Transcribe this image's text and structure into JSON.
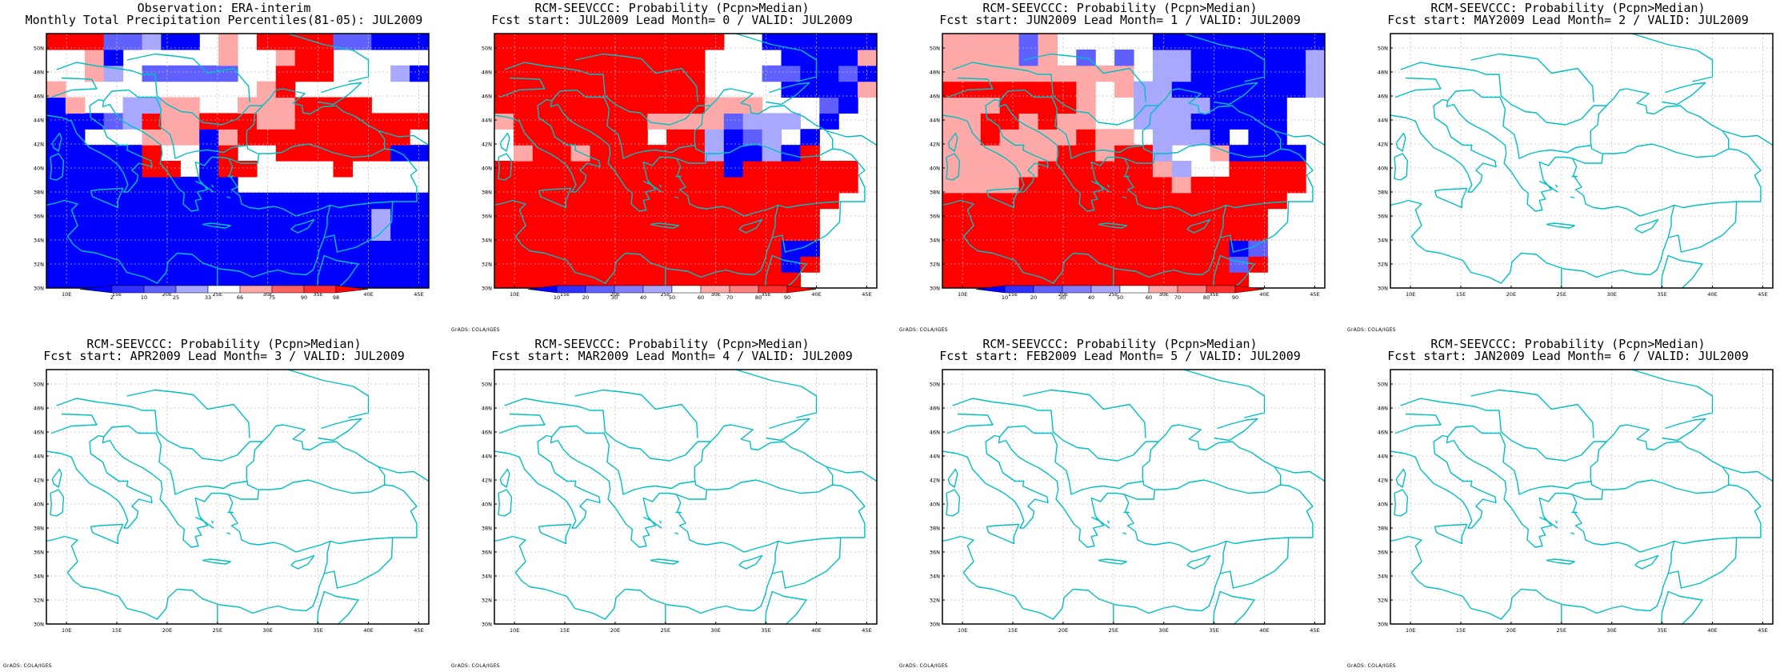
{
  "grid": {
    "lat_labels": [
      "30N",
      "32N",
      "34N",
      "36N",
      "38N",
      "40N",
      "42N",
      "44N",
      "46N",
      "48N",
      "50N"
    ],
    "lon_labels": [
      "10E",
      "15E",
      "20E",
      "25E",
      "30E",
      "35E",
      "40E",
      "45E"
    ],
    "lon_range": [
      8,
      46
    ],
    "lat_range": [
      30,
      51.2
    ]
  },
  "colors": {
    "red_deep": "#ff0000",
    "red_mid": "#ff6060",
    "red_light": "#ffa8a8",
    "white": "#ffffff",
    "blue_light": "#a8a8ff",
    "blue_mid": "#6060ff",
    "blue_deep": "#0000ff",
    "coast": "#00c0c0"
  },
  "panels": [
    {
      "title1": "Observation: ERA-interim",
      "title2": "Monthly Total Precipitation Percentiles(81-05): JUL2009",
      "colorbar": {
        "labels": [
          "2",
          "10",
          "25",
          "33",
          "66",
          "75",
          "90",
          "98"
        ],
        "colors": [
          "#0000ff",
          "#3030ff",
          "#6060ff",
          "#a8a8ff",
          "#ffffff",
          "#ffa8a8",
          "#ff6060",
          "#ff3030",
          "#ff0000"
        ]
      },
      "credit": "",
      "field": [
        "BBBBBBBBBBBBBBBBBBBB",
        "BBBBBBBBBBBBBBBBBBBB",
        "BBBBBBBBBBBBBBBBBBBB",
        "BBBBBBBBBBBBBBBBBbBB",
        "BBBBBBBBBBBBBBBBBbBB",
        "BBBBBBBBBBBBBBBBBBBB",
        "BBBBBBBBBBWWWWWWWWWW",
        "BBBBBRRWBRRWWWWRWWWW",
        "BBBBBRWWBRWWRRRRRRBB",
        "BBWWWrrrBrRRRRRRRRRW",
        "BBBMbRrrRRRrrRRRRRRR",
        "BrWWbbrrWWrrrRRRRWWW",
        "rWWWWWWWWWWrRWWWWWWW",
        "WWrbWMMMMMWWRRRWWWbB",
        "WWrBWWWWWrWWrRRWWWWW",
        "RRRMMbBBWrWRRRRMMBBB"
      ]
    },
    {
      "title1": "RCM-SEEVCCC: Probability (Pcpn>Median)",
      "title2": "Fcst start: JUL2009  Lead Month= 0 / VALID: JUL2009",
      "colorbar": {
        "labels": [
          "10",
          "20",
          "30",
          "40",
          "50",
          "60",
          "70",
          "80",
          "90"
        ],
        "colors": [
          "#0000ff",
          "#3030ff",
          "#6060ff",
          "#8080ff",
          "#a8a8ff",
          "#ffffff",
          "#ffa8a8",
          "#ff8080",
          "#ff3030",
          "#ff0000"
        ]
      },
      "credit": "GrADS: COLA/IGES",
      "field": [
        "RRRRRRRRRRRRRRRRWWWW",
        "RRRRRRRRRRRRRRRBRWWW",
        "RRRRRRRRRRRRRRRBBWWW",
        "RRRRRRRRRRRRRRRRRWWW",
        "RRRRRRRRRRRRRRRRRWWW",
        "RRRRRRRRRRRRRRRRRRWW",
        "RRRRRRRRRRRRRRRRRRRW",
        "RRRRRRRRRRRRBRRRRRRW",
        "WrRRrRRRRRRbBBbBRWWW",
        "WRRRRRRRWRRbBMbWBWWW",
        "rRRRRRRRrrrrMbbbWBWW",
        "RRRRRRRRRRRrrrWWWMBW",
        "RRRRRRRRRRRWWWWBBBBr",
        "RRRRRRRRRRRWWWMMBBMB",
        "RRRRRRRRRRRWWWWBBBBr",
        "RRRRRRRRRRRRWWBBBBBB"
      ]
    },
    {
      "title1": "RCM-SEEVCCC: Probability (Pcpn>Median)",
      "title2": "Fcst start: JUN2009  Lead Month= 1 / VALID: JUL2009",
      "colorbar": {
        "labels": [
          "10",
          "20",
          "30",
          "40",
          "50",
          "60",
          "70",
          "80",
          "90"
        ],
        "colors": [
          "#0000ff",
          "#3030ff",
          "#6060ff",
          "#8080ff",
          "#a8a8ff",
          "#ffffff",
          "#ffa8a8",
          "#ff8080",
          "#ff3030",
          "#ff0000"
        ]
      },
      "credit": "GrADS: COLA/IGES",
      "field": [
        "RRRRRRRRRRRRRRRRWWWW",
        "RRRRRRRRRRRRRRRMRWWW",
        "RRRRRRRRRRRRRRRBMWWW",
        "RRRRRRRRRRRRRRRRRWWW",
        "RRRRRRRRRRRRRRRRRWWW",
        "RRRRRRRRRRRRRRRRRRWW",
        "rrrrRRRRRRRRrRRRRRRW",
        "rrrrrRRRRRRrbWWRRRRW",
        "rrrrrrRRrRRbWWrBBBBW",
        "rrRrrrrRrrWbbbBWBBWW",
        "rrRRrRrrWWbbbBBBBBWW",
        "rrrRRRRrWWbbbbBBBBWW",
        "RRRRRRRrWrbbBBBBBBBb",
        "rrrrrrrrrrWbbBBBBBBb",
        "rrrrMrWMWMWbbBBBBBBb",
        "rrrrMrWWWWWBBBBBBBBB"
      ]
    },
    {
      "title1": "RCM-SEEVCCC: Probability (Pcpn>Median)",
      "title2": "Fcst start: MAY2009  Lead Month= 2 / VALID: JUL2009",
      "credit": "GrADS: COLA/IGES"
    },
    {
      "title1": "RCM-SEEVCCC: Probability (Pcpn>Median)",
      "title2": "Fcst start: APR2009  Lead Month= 3 / VALID: JUL2009",
      "credit": "GrADS: COLA/IGES"
    },
    {
      "title1": "RCM-SEEVCCC: Probability (Pcpn>Median)",
      "title2": "Fcst start: MAR2009  Lead Month= 4 / VALID: JUL2009",
      "credit": "GrADS: COLA/IGES"
    },
    {
      "title1": "RCM-SEEVCCC: Probability (Pcpn>Median)",
      "title2": "Fcst start: FEB2009  Lead Month= 5 / VALID: JUL2009",
      "credit": "GrADS: COLA/IGES"
    },
    {
      "title1": "RCM-SEEVCCC: Probability (Pcpn>Median)",
      "title2": "Fcst start: JAN2009  Lead Month= 6 / VALID: JUL2009",
      "credit": "GrADS: COLA/IGES"
    }
  ]
}
